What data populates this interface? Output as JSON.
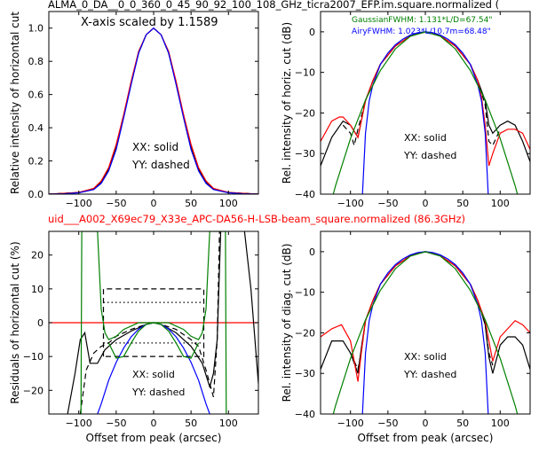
{
  "title_top": "ALMA_0_DA__0_0_360_0_45_90_92_100_108_GHz_ticra2007_EFP.im.square.normalized (",
  "title_mid": "uid___A002_X69ec79_X33e_APC-DA56-H-LSB-beam_square.normalized (86.3GHz)",
  "colors": {
    "black": "#000000",
    "red": "#ff0000",
    "blue": "#0000ff",
    "green": "#008000",
    "mid_title": "#ff0000"
  },
  "chart_data": [
    {
      "id": "p1",
      "type": "line",
      "annotation": "X-axis scaled by 1.1589",
      "ylabel": "Relative intensity of horizontal cut",
      "xlim": [
        -140,
        140
      ],
      "ylim": [
        0,
        1.1
      ],
      "xticks": [
        -100,
        -50,
        0,
        50,
        100
      ],
      "yticks": [
        0.0,
        0.2,
        0.4,
        0.6,
        0.8,
        1.0
      ],
      "yticklabels": [
        "0.0",
        "0.2",
        "0.4",
        "0.6",
        "0.8",
        "1.0"
      ],
      "legend_text": [
        "XX: solid",
        "YY: dashed"
      ],
      "series": [
        {
          "color": "black",
          "style": "solid",
          "x": [
            -140,
            -120,
            -100,
            -80,
            -70,
            -60,
            -50,
            -40,
            -30,
            -20,
            -10,
            0,
            10,
            20,
            30,
            40,
            50,
            60,
            70,
            80,
            100,
            120,
            140
          ],
          "y": [
            0,
            0.005,
            0.01,
            0.03,
            0.07,
            0.15,
            0.28,
            0.47,
            0.67,
            0.85,
            0.96,
            1.0,
            0.96,
            0.85,
            0.67,
            0.47,
            0.28,
            0.15,
            0.07,
            0.03,
            0.01,
            0.005,
            0
          ]
        },
        {
          "color": "black",
          "style": "dashed",
          "x": [
            -140,
            -120,
            -100,
            -80,
            -70,
            -60,
            -50,
            -40,
            -30,
            -20,
            -10,
            0,
            10,
            20,
            30,
            40,
            50,
            60,
            70,
            80,
            100,
            120,
            140
          ],
          "y": [
            0,
            0.005,
            0.01,
            0.03,
            0.07,
            0.15,
            0.28,
            0.47,
            0.67,
            0.85,
            0.96,
            1.0,
            0.96,
            0.85,
            0.67,
            0.47,
            0.28,
            0.15,
            0.07,
            0.03,
            0.01,
            0.005,
            0
          ]
        },
        {
          "color": "red",
          "style": "solid",
          "x": [
            -140,
            -120,
            -100,
            -80,
            -70,
            -60,
            -50,
            -40,
            -30,
            -20,
            -10,
            0,
            10,
            20,
            30,
            40,
            50,
            60,
            70,
            80,
            100,
            120,
            140
          ],
          "y": [
            0,
            0.005,
            0.01,
            0.035,
            0.08,
            0.16,
            0.3,
            0.48,
            0.68,
            0.86,
            0.96,
            1.0,
            0.96,
            0.86,
            0.68,
            0.48,
            0.3,
            0.16,
            0.08,
            0.035,
            0.01,
            0.005,
            0
          ]
        },
        {
          "color": "blue",
          "style": "solid",
          "x": [
            -140,
            -120,
            -100,
            -80,
            -70,
            -60,
            -50,
            -40,
            -30,
            -20,
            -10,
            0,
            10,
            20,
            30,
            40,
            50,
            60,
            70,
            80,
            100,
            120,
            140
          ],
          "y": [
            0,
            0.002,
            0.008,
            0.028,
            0.065,
            0.14,
            0.27,
            0.46,
            0.66,
            0.85,
            0.96,
            1.0,
            0.96,
            0.85,
            0.66,
            0.46,
            0.27,
            0.14,
            0.065,
            0.028,
            0.008,
            0.002,
            0
          ]
        }
      ]
    },
    {
      "id": "p2",
      "type": "line",
      "ylabel": "Rel. intensity of horiz. cut (dB)",
      "xlim": [
        -140,
        140
      ],
      "ylim": [
        -40,
        5
      ],
      "xticks": [
        -100,
        -50,
        0,
        50,
        100
      ],
      "yticks": [
        0,
        -10,
        -20,
        -30,
        -40
      ],
      "yticklabels": [
        "0",
        "−10",
        "−20",
        "−30",
        "−40"
      ],
      "legend_text": [
        "XX: solid",
        "YY: dashed"
      ],
      "notes": [
        "GaussianFWHM: 1.131*L/D=67.54\"",
        "AiryFWHM: 1.023*L/10.7m=68.48\""
      ],
      "series": [
        {
          "color": "black",
          "style": "solid",
          "x": [
            -140,
            -125,
            -110,
            -100,
            -90,
            -80,
            -70,
            -60,
            -40,
            -20,
            0,
            20,
            40,
            60,
            70,
            80,
            85,
            90,
            100,
            110,
            120,
            130,
            140
          ],
          "y": [
            -33,
            -26,
            -22,
            -23,
            -26,
            -17,
            -12,
            -8,
            -3.5,
            -1,
            0,
            -1,
            -3.5,
            -8,
            -12,
            -17,
            -23,
            -25,
            -23,
            -22,
            -23,
            -27,
            -32
          ]
        },
        {
          "color": "black",
          "style": "dashed",
          "x": [
            -110,
            -100,
            -95,
            -90,
            -80,
            -70,
            -60,
            -40,
            -20,
            0,
            20,
            40,
            60,
            70,
            80,
            85,
            90,
            100
          ],
          "y": [
            -23,
            -25,
            -28,
            -24,
            -17,
            -12,
            -8,
            -3.5,
            -1,
            0,
            -1,
            -3.5,
            -8,
            -12,
            -18,
            -27,
            -28,
            -24
          ]
        },
        {
          "color": "red",
          "style": "solid",
          "x": [
            -140,
            -125,
            -115,
            -110,
            -100,
            -90,
            -80,
            -70,
            -60,
            -40,
            -20,
            0,
            20,
            40,
            60,
            70,
            75,
            80,
            85,
            90,
            100,
            110,
            120,
            130,
            140
          ],
          "y": [
            -27,
            -22,
            -21,
            -21,
            -23,
            -26,
            -17,
            -12,
            -8,
            -3.5,
            -1,
            0,
            -1,
            -3.5,
            -8,
            -12,
            -16,
            -23,
            -33,
            -30,
            -25,
            -24,
            -24,
            -25,
            -29
          ]
        },
        {
          "color": "blue",
          "style": "solid",
          "x": [
            -84,
            -80,
            -75,
            -70,
            -60,
            -50,
            -40,
            -30,
            -20,
            -10,
            0,
            10,
            20,
            30,
            40,
            50,
            60,
            70,
            75,
            80,
            84
          ],
          "y": [
            -40,
            -25,
            -17,
            -13,
            -8,
            -5.2,
            -3.2,
            -1.8,
            -0.8,
            -0.2,
            0,
            -0.2,
            -0.8,
            -1.8,
            -3.2,
            -5.2,
            -8,
            -13,
            -17,
            -25,
            -40
          ]
        },
        {
          "color": "green",
          "style": "solid",
          "x": [
            -140,
            -120,
            -100,
            -80,
            -60,
            -40,
            -20,
            0,
            20,
            40,
            60,
            80,
            100,
            120,
            140
          ],
          "y": [
            -51.6,
            -37.9,
            -26.3,
            -16.8,
            -9.5,
            -4.2,
            -1.1,
            0,
            -1.1,
            -4.2,
            -9.5,
            -16.8,
            -26.3,
            -37.9,
            -51.6
          ]
        }
      ]
    },
    {
      "id": "p3",
      "type": "line",
      "ylabel": "Residuals of horizontal cut (%)",
      "xlabel": "Offset from peak (arcsec)",
      "xlim": [
        -140,
        140
      ],
      "ylim": [
        -27,
        27
      ],
      "xticks": [
        -100,
        -50,
        0,
        50,
        100
      ],
      "yticks": [
        20,
        10,
        0,
        -10,
        -20
      ],
      "yticklabels": [
        "20",
        "10",
        "0",
        "−10",
        "−20"
      ],
      "legend_text": [
        "XX: solid",
        "YY: dashed"
      ],
      "series": [
        {
          "color": "red",
          "style": "solid",
          "x": [
            -140,
            140
          ],
          "y": [
            0,
            0
          ]
        },
        {
          "color": "black",
          "style": "solid",
          "x": [
            -115,
            -105,
            -98,
            -92,
            -85,
            -75,
            -65,
            -50,
            -30,
            -10,
            0,
            10,
            30,
            50,
            65,
            75,
            80,
            85,
            90,
            100,
            110,
            120,
            130,
            140
          ],
          "y": [
            -27,
            -15,
            -5,
            -3,
            -12,
            -12,
            -8,
            -5,
            -2.5,
            -0.5,
            0,
            -0.5,
            -3,
            -7,
            -12,
            -19,
            -15,
            -5,
            30,
            30,
            30,
            30,
            10,
            -18
          ]
        },
        {
          "color": "black",
          "style": "dashed",
          "x": [
            -98,
            -90,
            -80,
            -70,
            -60,
            -50,
            -30,
            -10,
            0,
            10,
            30,
            50,
            60,
            70,
            80,
            85,
            88,
            90
          ],
          "y": [
            -27,
            -14,
            -9,
            -7,
            -6,
            -4,
            -2,
            -0.5,
            0,
            -0.5,
            -2,
            -5,
            -7,
            -14,
            -22,
            -5,
            27,
            27
          ]
        },
        {
          "color": "black",
          "style": "dashed",
          "x": [
            -67,
            -67,
            67,
            67,
            -67
          ],
          "y": [
            -10,
            10,
            10,
            -10,
            -10
          ]
        },
        {
          "color": "black",
          "style": "dotted",
          "x": [
            -67,
            67
          ],
          "y": [
            6,
            6
          ]
        },
        {
          "color": "black",
          "style": "dotted",
          "x": [
            -67,
            67
          ],
          "y": [
            -6,
            -6
          ]
        },
        {
          "color": "blue",
          "style": "solid",
          "x": [
            -75,
            -70,
            -60,
            -50,
            -40,
            -30,
            -20,
            -10,
            0,
            10,
            20,
            30,
            40,
            50,
            60,
            70,
            75
          ],
          "y": [
            -27,
            -24,
            -17,
            -11.7,
            -7.5,
            -4.2,
            -1.9,
            -0.5,
            0,
            -0.5,
            -1.9,
            -4.2,
            -7.5,
            -11.7,
            -17,
            -24,
            -27
          ]
        },
        {
          "color": "green",
          "style": "solid",
          "x": [
            -97,
            -96,
            -93,
            -90,
            -85,
            -80,
            -75,
            -70,
            -65,
            -60,
            -50,
            -40,
            -30,
            -20,
            -10,
            0,
            10,
            20,
            30,
            40,
            50,
            60,
            65,
            70,
            75,
            80,
            85,
            90,
            93,
            96,
            97
          ],
          "y": [
            -27,
            27,
            27,
            27,
            27,
            27,
            27,
            4,
            -3,
            -5,
            -4,
            -2,
            -1,
            0,
            0,
            0,
            0,
            0,
            -1,
            -2,
            -4,
            -5,
            -3,
            4,
            27,
            27,
            27,
            27,
            27,
            27,
            -27
          ]
        },
        {
          "color": "green",
          "style": "solid",
          "x": [
            -60,
            -50,
            -40,
            -30,
            -20,
            -10,
            0,
            10,
            20,
            30,
            40,
            50,
            60
          ],
          "y": [
            -6,
            -10.5,
            -10,
            -6,
            -2.5,
            -0.5,
            0,
            -0.5,
            -2.5,
            -6,
            -10,
            -10.5,
            -6
          ]
        }
      ]
    },
    {
      "id": "p4",
      "type": "line",
      "ylabel": "Rel. intensity of diag. cut (dB)",
      "xlabel": "Offset from peak (arcsec)",
      "xlim": [
        -140,
        140
      ],
      "ylim": [
        -40,
        5
      ],
      "xticks": [
        -100,
        -50,
        0,
        50,
        100
      ],
      "yticks": [
        0,
        -10,
        -20,
        -30,
        -40
      ],
      "yticklabels": [
        "0",
        "−10",
        "−20",
        "−30",
        "−40"
      ],
      "legend_text": [
        "XX: solid",
        "YY: dashed"
      ],
      "series": [
        {
          "color": "black",
          "style": "solid",
          "x": [
            -140,
            -125,
            -110,
            -100,
            -90,
            -85,
            -80,
            -70,
            -60,
            -40,
            -20,
            0,
            20,
            40,
            60,
            70,
            80,
            85,
            90,
            100,
            110,
            120,
            130,
            140
          ],
          "y": [
            -29,
            -22,
            -22,
            -25,
            -30,
            -23,
            -17,
            -12,
            -8,
            -3.5,
            -1,
            0,
            -1,
            -3.5,
            -8,
            -12,
            -18,
            -26,
            -30,
            -23,
            -21,
            -21,
            -23,
            -29
          ]
        },
        {
          "color": "black",
          "style": "dashed",
          "x": [
            -100,
            -90,
            -85,
            -80,
            -70,
            -60,
            -40,
            -20,
            0,
            20,
            40,
            60,
            70,
            80,
            85,
            90
          ],
          "y": [
            -25,
            -29,
            -24,
            -17,
            -12,
            -8,
            -3.5,
            -1,
            0,
            -1,
            -3.5,
            -8,
            -12,
            -18,
            -25,
            -28
          ]
        },
        {
          "color": "red",
          "style": "solid",
          "x": [
            -140,
            -125,
            -112,
            -100,
            -90,
            -85,
            -80,
            -70,
            -60,
            -40,
            -20,
            0,
            20,
            40,
            60,
            70,
            80,
            85,
            90,
            100,
            110,
            120,
            130,
            140
          ],
          "y": [
            -21,
            -19,
            -18,
            -22,
            -32,
            -24,
            -17,
            -12,
            -8,
            -3.5,
            -1,
            0,
            -1,
            -3.5,
            -8,
            -12,
            -17,
            -22,
            -27,
            -21,
            -19,
            -17,
            -18,
            -20
          ]
        },
        {
          "color": "blue",
          "style": "solid",
          "x": [
            -84,
            -80,
            -75,
            -70,
            -60,
            -50,
            -40,
            -30,
            -20,
            -10,
            0,
            10,
            20,
            30,
            40,
            50,
            60,
            70,
            75,
            80,
            84
          ],
          "y": [
            -40,
            -25,
            -17,
            -13,
            -8,
            -5.2,
            -3.2,
            -1.8,
            -0.8,
            -0.2,
            0,
            -0.2,
            -0.8,
            -1.8,
            -3.2,
            -5.2,
            -8,
            -13,
            -17,
            -25,
            -40
          ]
        },
        {
          "color": "green",
          "style": "solid",
          "x": [
            -140,
            -120,
            -100,
            -80,
            -60,
            -40,
            -20,
            0,
            20,
            40,
            60,
            80,
            100,
            120,
            140
          ],
          "y": [
            -51.6,
            -37.9,
            -26.3,
            -16.8,
            -9.5,
            -4.2,
            -1.1,
            0,
            -1.1,
            -4.2,
            -9.5,
            -16.8,
            -26.3,
            -37.9,
            -51.6
          ]
        }
      ]
    }
  ]
}
